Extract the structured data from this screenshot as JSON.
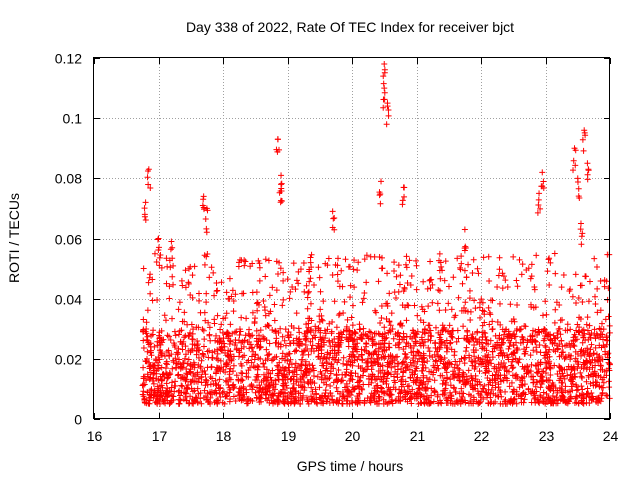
{
  "chart_data": {
    "type": "scatter",
    "title": "Day 338 of 2022, Rate Of TEC Index for receiver bjct",
    "xlabel": "GPS time / hours",
    "ylabel": "ROTI / TECUs",
    "xlim": [
      16,
      24
    ],
    "ylim": [
      0,
      0.12
    ],
    "x_ticks": [
      "16",
      "17",
      "18",
      "19",
      "20",
      "21",
      "22",
      "23",
      "24"
    ],
    "y_ticks": [
      "0",
      "0.02",
      "0.04",
      "0.06",
      "0.08",
      "0.1",
      "0.12"
    ],
    "grid": true,
    "marker": "+",
    "color": "#ff0000",
    "series": [
      {
        "name": "ROTI",
        "x_start": 16.75,
        "x_end": 24.0,
        "typical_range": [
          0.005,
          0.03
        ],
        "spikes": [
          {
            "x": 16.85,
            "y": 0.083
          },
          {
            "x": 16.8,
            "y": 0.072
          },
          {
            "x": 17.0,
            "y": 0.06
          },
          {
            "x": 17.2,
            "y": 0.059
          },
          {
            "x": 17.7,
            "y": 0.074
          },
          {
            "x": 17.75,
            "y": 0.07
          },
          {
            "x": 18.85,
            "y": 0.093
          },
          {
            "x": 18.9,
            "y": 0.081
          },
          {
            "x": 18.9,
            "y": 0.078
          },
          {
            "x": 19.7,
            "y": 0.069
          },
          {
            "x": 20.45,
            "y": 0.079
          },
          {
            "x": 20.5,
            "y": 0.118
          },
          {
            "x": 20.5,
            "y": 0.11
          },
          {
            "x": 20.55,
            "y": 0.105
          },
          {
            "x": 20.8,
            "y": 0.077
          },
          {
            "x": 21.75,
            "y": 0.063
          },
          {
            "x": 22.95,
            "y": 0.082
          },
          {
            "x": 22.9,
            "y": 0.075
          },
          {
            "x": 23.45,
            "y": 0.09
          },
          {
            "x": 23.6,
            "y": 0.096
          },
          {
            "x": 23.65,
            "y": 0.085
          },
          {
            "x": 23.5,
            "y": 0.08
          },
          {
            "x": 23.55,
            "y": 0.065
          }
        ]
      }
    ]
  }
}
